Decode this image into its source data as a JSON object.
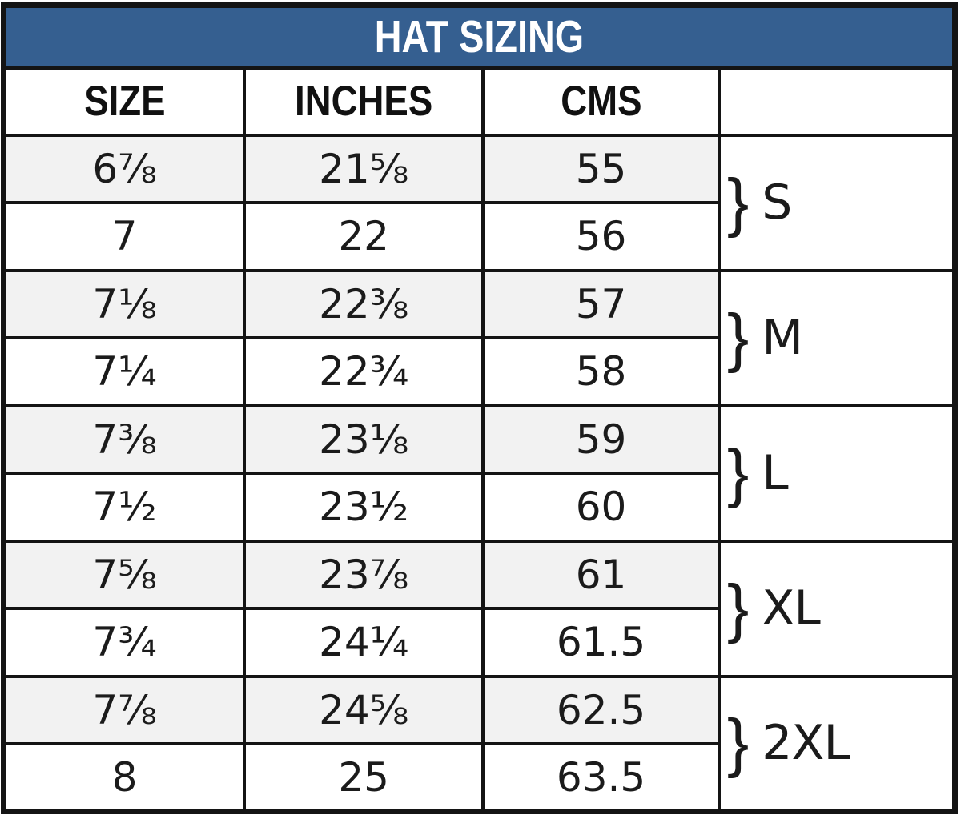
{
  "title": "HAT SIZING",
  "columns": {
    "size": "SIZE",
    "inches": "INCHES",
    "cms": "CMS",
    "group": ""
  },
  "rows": [
    {
      "size": "6⅞",
      "inches": "21⅝",
      "cms": "55"
    },
    {
      "size": "7",
      "inches": "22",
      "cms": "56"
    },
    {
      "size": "7⅛",
      "inches": "22⅜",
      "cms": "57"
    },
    {
      "size": "7¼",
      "inches": "22¾",
      "cms": "58"
    },
    {
      "size": "7⅜",
      "inches": "23⅛",
      "cms": "59"
    },
    {
      "size": "7½",
      "inches": "23½",
      "cms": "60"
    },
    {
      "size": "7⅝",
      "inches": "23⅞",
      "cms": "61"
    },
    {
      "size": "7¾",
      "inches": "24¼",
      "cms": "61.5"
    },
    {
      "size": "7⅞",
      "inches": "24⅝",
      "cms": "62.5"
    },
    {
      "size": "8",
      "inches": "25",
      "cms": "63.5"
    }
  ],
  "groups": [
    {
      "brace": "}",
      "label": "S"
    },
    {
      "brace": "}",
      "label": "M"
    },
    {
      "brace": "}",
      "label": "L"
    },
    {
      "brace": "}",
      "label": "XL"
    },
    {
      "brace": "}",
      "label": "2XL"
    }
  ],
  "colors": {
    "header_blue": "#355f90",
    "title_text": "#ffffff",
    "border": "#141414",
    "row_shaded": "#f2f2f2",
    "row_plain": "#ffffff",
    "cell_text": "#1b1b1b"
  },
  "chart_data": {
    "type": "table",
    "title": "HAT SIZING",
    "column_headers": [
      "SIZE",
      "INCHES",
      "CMS",
      ""
    ],
    "rows": [
      [
        "6⅞",
        "21⅝",
        "55",
        "S"
      ],
      [
        "7",
        "22",
        "56",
        "S"
      ],
      [
        "7⅛",
        "22⅜",
        "57",
        "M"
      ],
      [
        "7¼",
        "22¾",
        "58",
        "M"
      ],
      [
        "7⅜",
        "23⅛",
        "59",
        "L"
      ],
      [
        "7½",
        "23½",
        "60",
        "L"
      ],
      [
        "7⅝",
        "23⅞",
        "61",
        "XL"
      ],
      [
        "7¾",
        "24¼",
        "61.5",
        "XL"
      ],
      [
        "7⅞",
        "24⅝",
        "62.5",
        "2XL"
      ],
      [
        "8",
        "25",
        "63.5",
        "2XL"
      ]
    ],
    "notes": "Size-group labels in the last column each span two consecutive rows, marked with a curly brace.",
    "layout": {
      "alternating_row_shading": true,
      "title_bar_color": "#355f90",
      "grid": true
    }
  }
}
